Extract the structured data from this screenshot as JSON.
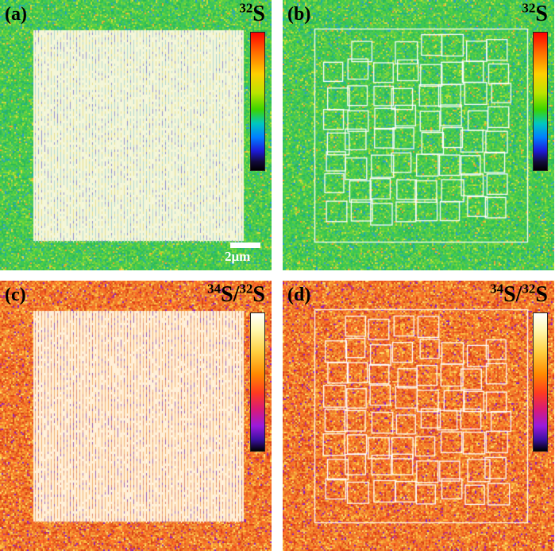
{
  "panels": [
    {
      "id": "a",
      "label": "(a)",
      "isotope_mass": "32",
      "isotope_symbol": "S",
      "ratio": false,
      "colormap": "rainbow",
      "pattern": "line-array",
      "scale_bar": "2μm"
    },
    {
      "id": "b",
      "label": "(b)",
      "isotope_mass": "32",
      "isotope_symbol": "S",
      "ratio": false,
      "colormap": "rainbow",
      "pattern": "square-grid"
    },
    {
      "id": "c",
      "label": "(c)",
      "numerator_mass": "34",
      "denominator_mass": "32",
      "isotope_symbol": "S",
      "ratio": true,
      "colormap": "hot",
      "pattern": "line-array"
    },
    {
      "id": "d",
      "label": "(d)",
      "numerator_mass": "34",
      "denominator_mass": "32",
      "isotope_symbol": "S",
      "ratio": true,
      "colormap": "hot",
      "pattern": "square-grid"
    }
  ],
  "colors": {
    "background_green": "#3cc850",
    "background_orange": "#f0782a",
    "pattern_white": "#ffffff"
  }
}
